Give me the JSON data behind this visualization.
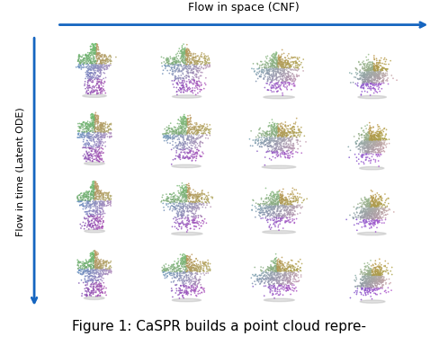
{
  "title_top": "Flow in space (CNF)",
  "title_left": "Flow in time (Latent ODE)",
  "caption": "Figure 1: CaSPR builds a point cloud repre-",
  "grid_rows": 4,
  "grid_cols": 4,
  "background_color": "#ffffff",
  "arrow_color": "#1565C0",
  "caption_fontsize": 11,
  "n_points": 800,
  "seed": 42
}
